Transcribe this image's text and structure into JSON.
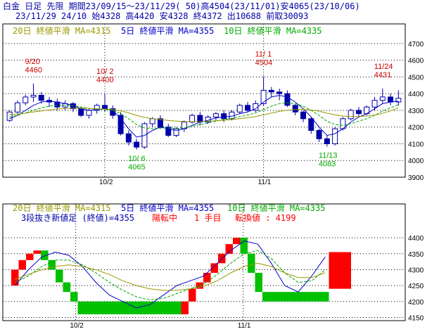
{
  "header": {
    "line1": "白金 日足 先限 期間23/09/15〜23/11/29( 50)高4504(23/11/01)安4065(23/10/06)",
    "line2": "23/11/29 24/10 始4328 高4420 安4328 終4372 出10688 前取30093"
  },
  "top_legend": {
    "ma20": "20日 終値平滑 MA=4315",
    "ma5": "5日 終値平滑 MA=4355",
    "ma10": "10日 終値平滑 MA=4335"
  },
  "bottom_legend": {
    "ma20": "20日 終値平滑 MA=4315",
    "ma5": "5日 終値平滑 MA=4355",
    "ma10": "10日 終値平滑 MA=4335",
    "sanbon_label": "3段抜き新値足 (終値)=4355",
    "state": "陽転中",
    "step": "1 手目",
    "turn": "転換値 : 4199"
  },
  "colors": {
    "up": "#ff0000",
    "down": "#00c000",
    "candle_up": "#ffffff",
    "candle_down": "#0000aa",
    "ma5": "#0000cc",
    "ma10": "#00aa00",
    "ma20": "#999900",
    "grid": "#000000"
  },
  "chart_data": [
    {
      "type": "candlestick",
      "title": "白金 日足 先限",
      "ylim": [
        3900,
        4750
      ],
      "y_ticks": [
        3900,
        4000,
        4100,
        4200,
        4300,
        4400,
        4500,
        4600,
        4700
      ],
      "x_labels": [
        "10/2",
        "11/1"
      ],
      "annotations": [
        {
          "date": "9/20",
          "value": "4460",
          "kind": "high"
        },
        {
          "date": "10/ 2",
          "value": "4400",
          "kind": "high"
        },
        {
          "date": "10/ 6",
          "value": "4065",
          "kind": "low"
        },
        {
          "date": "11/ 1",
          "value": "4504",
          "kind": "high"
        },
        {
          "date": "11/13",
          "value": "4083",
          "kind": "low"
        },
        {
          "date": "11/24",
          "value": "4431",
          "kind": "high"
        }
      ],
      "candles": [
        [
          4240,
          4290,
          4230,
          4300
        ],
        [
          4290,
          4345,
          4280,
          4360
        ],
        [
          4345,
          4380,
          4330,
          4395
        ],
        [
          4380,
          4390,
          4350,
          4460
        ],
        [
          4390,
          4360,
          4340,
          4410
        ],
        [
          4360,
          4350,
          4320,
          4380
        ],
        [
          4350,
          4320,
          4300,
          4370
        ],
        [
          4320,
          4340,
          4300,
          4360
        ],
        [
          4340,
          4310,
          4290,
          4350
        ],
        [
          4310,
          4270,
          4260,
          4320
        ],
        [
          4270,
          4300,
          4250,
          4310
        ],
        [
          4300,
          4330,
          4280,
          4340
        ],
        [
          4330,
          4310,
          4290,
          4400
        ],
        [
          4310,
          4270,
          4250,
          4330
        ],
        [
          4270,
          4160,
          4150,
          4290
        ],
        [
          4160,
          4110,
          4090,
          4180
        ],
        [
          4110,
          4080,
          4065,
          4130
        ],
        [
          4080,
          4220,
          4070,
          4230
        ],
        [
          4220,
          4250,
          4200,
          4260
        ],
        [
          4250,
          4200,
          4190,
          4270
        ],
        [
          4200,
          4150,
          4140,
          4220
        ],
        [
          4150,
          4190,
          4140,
          4200
        ],
        [
          4190,
          4230,
          4170,
          4240
        ],
        [
          4230,
          4270,
          4220,
          4280
        ],
        [
          4270,
          4230,
          4210,
          4290
        ],
        [
          4230,
          4260,
          4220,
          4270
        ],
        [
          4260,
          4280,
          4240,
          4290
        ],
        [
          4280,
          4250,
          4230,
          4300
        ],
        [
          4250,
          4290,
          4240,
          4300
        ],
        [
          4290,
          4330,
          4280,
          4340
        ],
        [
          4330,
          4300,
          4290,
          4350
        ],
        [
          4300,
          4340,
          4290,
          4360
        ],
        [
          4340,
          4420,
          4330,
          4504
        ],
        [
          4420,
          4410,
          4380,
          4440
        ],
        [
          4410,
          4400,
          4360,
          4430
        ],
        [
          4400,
          4330,
          4320,
          4420
        ],
        [
          4330,
          4290,
          4270,
          4340
        ],
        [
          4290,
          4250,
          4230,
          4300
        ],
        [
          4250,
          4180,
          4160,
          4260
        ],
        [
          4180,
          4130,
          4110,
          4190
        ],
        [
          4130,
          4100,
          4083,
          4150
        ],
        [
          4100,
          4190,
          4090,
          4200
        ],
        [
          4190,
          4250,
          4180,
          4260
        ],
        [
          4250,
          4300,
          4240,
          4310
        ],
        [
          4300,
          4280,
          4260,
          4320
        ],
        [
          4280,
          4320,
          4270,
          4330
        ],
        [
          4320,
          4360,
          4300,
          4380
        ],
        [
          4360,
          4380,
          4340,
          4431
        ],
        [
          4380,
          4350,
          4330,
          4400
        ],
        [
          4350,
          4372,
          4328,
          4420
        ]
      ],
      "series": [
        {
          "name": "5日 終値平滑",
          "values": [
            4250,
            4270,
            4300,
            4330,
            4350,
            4355,
            4350,
            4340,
            4330,
            4310,
            4300,
            4305,
            4310,
            4300,
            4250,
            4190,
            4140,
            4150,
            4180,
            4200,
            4190,
            4180,
            4190,
            4210,
            4230,
            4240,
            4255,
            4260,
            4265,
            4280,
            4290,
            4310,
            4350,
            4380,
            4390,
            4380,
            4350,
            4310,
            4260,
            4200,
            4150,
            4160,
            4190,
            4230,
            4260,
            4280,
            4310,
            4340,
            4350,
            4355
          ]
        },
        {
          "name": "10日 終値平滑",
          "values": [
            4260,
            4270,
            4285,
            4300,
            4315,
            4325,
            4330,
            4330,
            4328,
            4320,
            4312,
            4308,
            4305,
            4300,
            4280,
            4250,
            4215,
            4195,
            4190,
            4195,
            4195,
            4192,
            4195,
            4205,
            4215,
            4225,
            4235,
            4245,
            4252,
            4262,
            4272,
            4285,
            4305,
            4325,
            4340,
            4345,
            4340,
            4325,
            4300,
            4270,
            4235,
            4215,
            4210,
            4220,
            4235,
            4250,
            4270,
            4295,
            4315,
            4335
          ]
        },
        {
          "name": "20日 終値平滑",
          "values": [
            4275,
            4278,
            4283,
            4290,
            4297,
            4303,
            4308,
            4311,
            4313,
            4313,
            4312,
            4310,
            4308,
            4305,
            4297,
            4285,
            4270,
            4258,
            4250,
            4245,
            4240,
            4236,
            4233,
            4232,
            4233,
            4235,
            4238,
            4241,
            4245,
            4250,
            4256,
            4263,
            4273,
            4284,
            4294,
            4301,
            4305,
            4306,
            4302,
            4295,
            4283,
            4273,
            4266,
            4263,
            4263,
            4266,
            4272,
            4282,
            4297,
            4315
          ]
        }
      ]
    },
    {
      "type": "bar",
      "title": "3段抜き新値足 (終値)",
      "ylim": [
        4140,
        4440
      ],
      "y_ticks": [
        4150,
        4200,
        4250,
        4300,
        4350,
        4400
      ],
      "x_labels": [
        "10/2",
        "11/1"
      ],
      "bricks": [
        {
          "dir": "up",
          "from": 4250,
          "to": 4300
        },
        {
          "dir": "up",
          "from": 4300,
          "to": 4330
        },
        {
          "dir": "up",
          "from": 4330,
          "to": 4350
        },
        {
          "dir": "up",
          "from": 4350,
          "to": 4360
        },
        {
          "dir": "down",
          "from": 4360,
          "to": 4330
        },
        {
          "dir": "down",
          "from": 4330,
          "to": 4300
        },
        {
          "dir": "down",
          "from": 4300,
          "to": 4260
        },
        {
          "dir": "down",
          "from": 4260,
          "to": 4230
        },
        {
          "dir": "down",
          "from": 4230,
          "to": 4200
        },
        {
          "dir": "down",
          "from": 4200,
          "to": 4160
        },
        {
          "dir": "up",
          "from": 4160,
          "to": 4200
        },
        {
          "dir": "up",
          "from": 4200,
          "to": 4240
        },
        {
          "dir": "up",
          "from": 4240,
          "to": 4260
        },
        {
          "dir": "up",
          "from": 4260,
          "to": 4290
        },
        {
          "dir": "up",
          "from": 4290,
          "to": 4320
        },
        {
          "dir": "up",
          "from": 4320,
          "to": 4350
        },
        {
          "dir": "up",
          "from": 4350,
          "to": 4380
        },
        {
          "dir": "up",
          "from": 4380,
          "to": 4400
        },
        {
          "dir": "down",
          "from": 4400,
          "to": 4350
        },
        {
          "dir": "down",
          "from": 4350,
          "to": 4290
        },
        {
          "dir": "down",
          "from": 4290,
          "to": 4230
        },
        {
          "dir": "down",
          "from": 4230,
          "to": 4200
        },
        {
          "dir": "up",
          "from": 4240,
          "to": 4355
        }
      ],
      "series": [
        {
          "name": "5日 終値平滑",
          "values": [
            4250,
            4300,
            4340,
            4355,
            4345,
            4310,
            4260,
            4220,
            4200,
            4180,
            4190,
            4220,
            4250,
            4265,
            4280,
            4320,
            4360,
            4390,
            4380,
            4320,
            4250,
            4230,
            4280,
            4340
          ]
        },
        {
          "name": "10日 終値平滑",
          "values": [
            4260,
            4280,
            4310,
            4330,
            4330,
            4315,
            4290,
            4260,
            4235,
            4215,
            4205,
            4210,
            4225,
            4240,
            4255,
            4285,
            4320,
            4350,
            4360,
            4335,
            4290,
            4260,
            4265,
            4300
          ]
        },
        {
          "name": "20日 終値平滑",
          "values": [
            4270,
            4285,
            4300,
            4310,
            4315,
            4310,
            4300,
            4285,
            4265,
            4250,
            4240,
            4235,
            4235,
            4240,
            4248,
            4265,
            4290,
            4310,
            4320,
            4310,
            4290,
            4275,
            4275,
            4290
          ]
        }
      ]
    }
  ]
}
